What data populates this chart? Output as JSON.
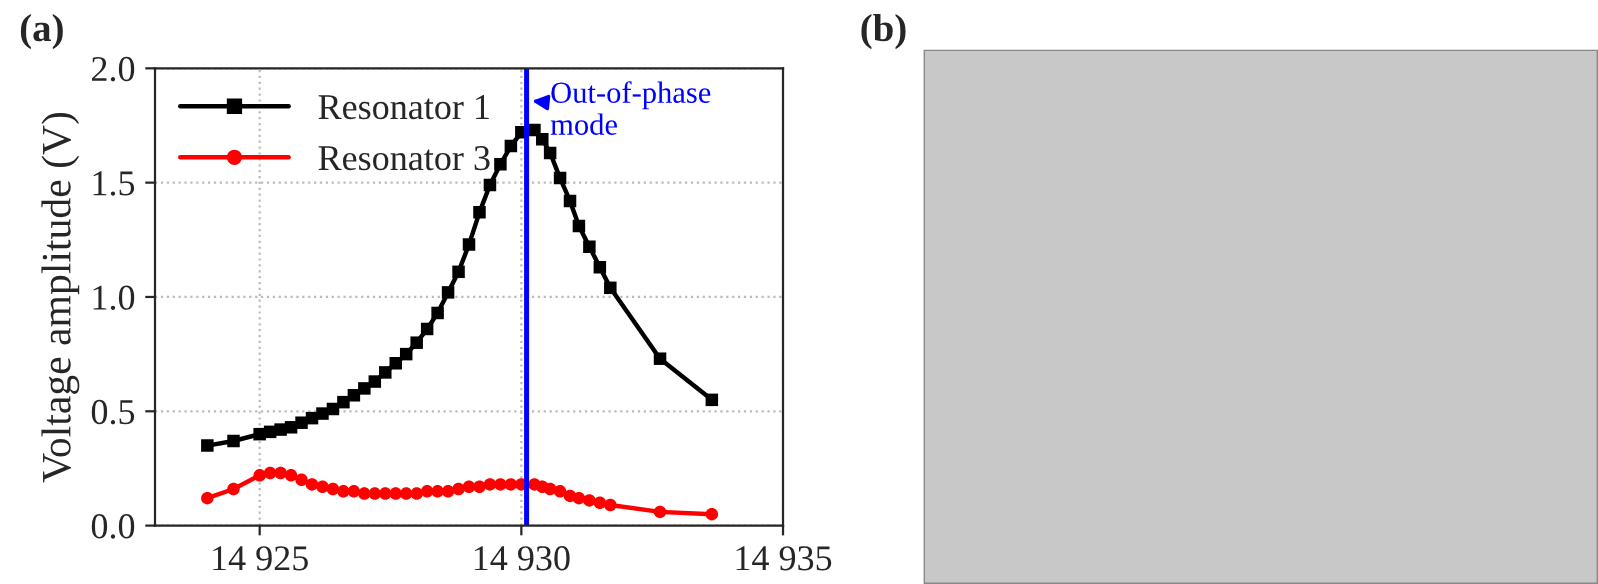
{
  "chart_data": [
    {
      "type": "line",
      "title": "(a)",
      "ylabel": "Voltage amplitude (V)",
      "xlim": [
        14923,
        14935
      ],
      "xticks": [
        {
          "value": 14925,
          "label": "14 925"
        },
        {
          "value": 14930,
          "label": "14 930"
        },
        {
          "value": 14935,
          "label": "14 935"
        }
      ],
      "ylim": [
        0,
        2.0
      ],
      "yticks": [
        {
          "value": 0,
          "label": "0.0"
        },
        0.5,
        {
          "value": 1,
          "label": "1.0"
        },
        1.5,
        {
          "value": 2,
          "label": "2.0"
        }
      ],
      "grid": true,
      "legend": "top left",
      "line_style": "solid",
      "series": [
        {
          "name": "Resonator 1",
          "color": "#000000",
          "marker": "square",
          "x": [
            14924.0,
            14924.5,
            14925.0,
            14925.2,
            14925.4,
            14925.6,
            14925.8,
            14926.0,
            14926.2,
            14926.4,
            14926.6,
            14926.8,
            14927.0,
            14927.2,
            14927.4,
            14927.6,
            14927.8,
            14928.0,
            14928.2,
            14928.4,
            14928.6,
            14928.8,
            14929.0,
            14929.2,
            14929.4,
            14929.6,
            14929.8,
            14930.0,
            14930.25,
            14930.4,
            14930.55,
            14930.74,
            14930.93,
            14931.1,
            14931.3,
            14931.5,
            14931.7,
            14932.65,
            14933.64
          ],
          "values": [
            0.35,
            0.37,
            0.4,
            0.41,
            0.42,
            0.43,
            0.45,
            0.47,
            0.49,
            0.51,
            0.54,
            0.57,
            0.6,
            0.63,
            0.67,
            0.71,
            0.75,
            0.8,
            0.86,
            0.93,
            1.02,
            1.11,
            1.23,
            1.37,
            1.49,
            1.58,
            1.66,
            1.72,
            1.73,
            1.69,
            1.63,
            1.52,
            1.42,
            1.31,
            1.22,
            1.13,
            1.04,
            0.73,
            0.55
          ]
        },
        {
          "name": "Resonator 3",
          "color": "#ff0000",
          "marker": "circle",
          "x": [
            14924.0,
            14924.5,
            14925.0,
            14925.2,
            14925.4,
            14925.6,
            14925.8,
            14926.0,
            14926.2,
            14926.4,
            14926.6,
            14926.8,
            14927.0,
            14927.2,
            14927.4,
            14927.6,
            14927.8,
            14928.0,
            14928.2,
            14928.4,
            14928.6,
            14928.8,
            14929.0,
            14929.2,
            14929.4,
            14929.6,
            14929.8,
            14930.0,
            14930.25,
            14930.4,
            14930.55,
            14930.74,
            14930.93,
            14931.1,
            14931.3,
            14931.5,
            14931.7,
            14932.65,
            14933.64
          ],
          "values": [
            0.12,
            0.16,
            0.22,
            0.23,
            0.23,
            0.22,
            0.2,
            0.18,
            0.17,
            0.16,
            0.15,
            0.15,
            0.14,
            0.14,
            0.14,
            0.14,
            0.14,
            0.14,
            0.15,
            0.15,
            0.15,
            0.16,
            0.17,
            0.17,
            0.18,
            0.18,
            0.18,
            0.18,
            0.18,
            0.17,
            0.16,
            0.15,
            0.13,
            0.12,
            0.11,
            0.1,
            0.09,
            0.06,
            0.05
          ]
        }
      ],
      "ref_lines": [
        {
          "axis": "x",
          "value": 14930.1,
          "color": "#0000ff",
          "line_style": "solid"
        }
      ],
      "annotations": [
        {
          "text": "Out-of-phase\nmode",
          "x": 14930.1,
          "y": 1.86
        }
      ]
    },
    {
      "type": "other",
      "title": "(b)"
    }
  ]
}
